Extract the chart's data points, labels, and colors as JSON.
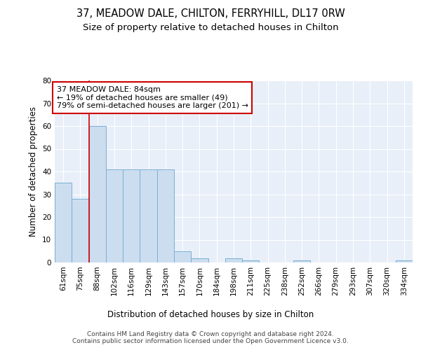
{
  "title1": "37, MEADOW DALE, CHILTON, FERRYHILL, DL17 0RW",
  "title2": "Size of property relative to detached houses in Chilton",
  "xlabel": "Distribution of detached houses by size in Chilton",
  "ylabel": "Number of detached properties",
  "categories": [
    "61sqm",
    "75sqm",
    "88sqm",
    "102sqm",
    "116sqm",
    "129sqm",
    "143sqm",
    "157sqm",
    "170sqm",
    "184sqm",
    "198sqm",
    "211sqm",
    "225sqm",
    "238sqm",
    "252sqm",
    "266sqm",
    "279sqm",
    "293sqm",
    "307sqm",
    "320sqm",
    "334sqm"
  ],
  "values": [
    35,
    28,
    60,
    41,
    41,
    41,
    41,
    5,
    2,
    0,
    2,
    1,
    0,
    0,
    1,
    0,
    0,
    0,
    0,
    0,
    1
  ],
  "bar_color": "#ccddf0",
  "bar_edge_color": "#7aafd4",
  "highlight_line_color": "#cc0000",
  "annotation_text": "37 MEADOW DALE: 84sqm\n← 19% of detached houses are smaller (49)\n79% of semi-detached houses are larger (201) →",
  "annotation_box_color": "white",
  "annotation_box_edge_color": "#cc0000",
  "ylim": [
    0,
    80
  ],
  "yticks": [
    0,
    10,
    20,
    30,
    40,
    50,
    60,
    70,
    80
  ],
  "background_color": "#e8eff8",
  "grid_color": "white",
  "footer_text": "Contains HM Land Registry data © Crown copyright and database right 2024.\nContains public sector information licensed under the Open Government Licence v3.0.",
  "title1_fontsize": 10.5,
  "title2_fontsize": 9.5,
  "axis_fontsize": 8.5,
  "tick_fontsize": 7.5,
  "ylabel_fontsize": 8.5,
  "footer_fontsize": 6.5
}
